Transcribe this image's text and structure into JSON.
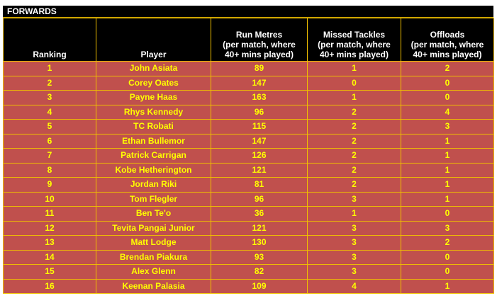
{
  "title": "FORWARDS",
  "headers": {
    "ranking": "Ranking",
    "player": "Player",
    "run_metres": [
      "Run Metres",
      "(per match, where",
      "40+ mins played)"
    ],
    "missed_tackles": [
      "Missed Tackles",
      "(per match, where",
      "40+ mins played)"
    ],
    "offloads": [
      "Offloads",
      "(per match, where",
      "40+ mins played)"
    ]
  },
  "rows": [
    {
      "ranking": "1",
      "player": "John Asiata",
      "run_metres": "89",
      "missed_tackles": "1",
      "offloads": "2"
    },
    {
      "ranking": "2",
      "player": "Corey Oates",
      "run_metres": "147",
      "missed_tackles": "0",
      "offloads": "0"
    },
    {
      "ranking": "3",
      "player": "Payne Haas",
      "run_metres": "163",
      "missed_tackles": "1",
      "offloads": "0"
    },
    {
      "ranking": "4",
      "player": "Rhys Kennedy",
      "run_metres": "96",
      "missed_tackles": "2",
      "offloads": "4"
    },
    {
      "ranking": "5",
      "player": "TC Robati",
      "run_metres": "115",
      "missed_tackles": "2",
      "offloads": "3"
    },
    {
      "ranking": "6",
      "player": "Ethan Bullemor",
      "run_metres": "147",
      "missed_tackles": "2",
      "offloads": "1"
    },
    {
      "ranking": "7",
      "player": "Patrick Carrigan",
      "run_metres": "126",
      "missed_tackles": "2",
      "offloads": "1"
    },
    {
      "ranking": "8",
      "player": "Kobe Hetherington",
      "run_metres": "121",
      "missed_tackles": "2",
      "offloads": "1"
    },
    {
      "ranking": "9",
      "player": "Jordan Riki",
      "run_metres": "81",
      "missed_tackles": "2",
      "offloads": "1"
    },
    {
      "ranking": "10",
      "player": "Tom Flegler",
      "run_metres": "96",
      "missed_tackles": "3",
      "offloads": "1"
    },
    {
      "ranking": "11",
      "player": "Ben Te'o",
      "run_metres": "36",
      "missed_tackles": "1",
      "offloads": "0"
    },
    {
      "ranking": "12",
      "player": "Tevita Pangai Junior",
      "run_metres": "121",
      "missed_tackles": "3",
      "offloads": "3"
    },
    {
      "ranking": "13",
      "player": "Matt Lodge",
      "run_metres": "130",
      "missed_tackles": "3",
      "offloads": "2"
    },
    {
      "ranking": "14",
      "player": "Brendan Piakura",
      "run_metres": "93",
      "missed_tackles": "3",
      "offloads": "0"
    },
    {
      "ranking": "15",
      "player": "Alex Glenn",
      "run_metres": "82",
      "missed_tackles": "3",
      "offloads": "0"
    },
    {
      "ranking": "16",
      "player": "Keenan Palasia",
      "run_metres": "109",
      "missed_tackles": "4",
      "offloads": "1"
    }
  ],
  "colors": {
    "header_bg": "#000000",
    "header_text": "#ffffff",
    "row_bg": "#c0504d",
    "row_text": "#ffff00",
    "border": "#f0c000"
  }
}
